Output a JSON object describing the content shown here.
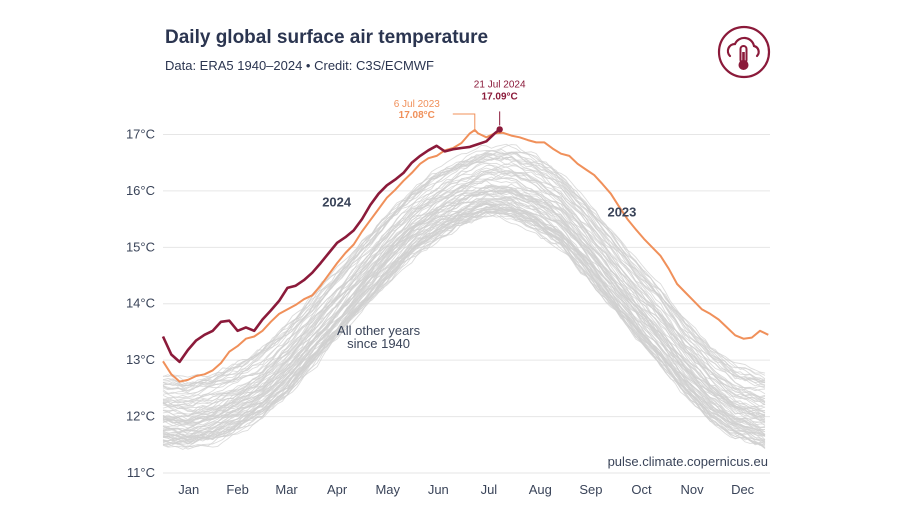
{
  "header": {
    "title": "Daily global surface air temperature",
    "subtitle": "Data: ERA5 1940–2024 • Credit: C3S/ECMWF"
  },
  "colors": {
    "y2024": "#8b1a3a",
    "y2023": "#f0905a",
    "others": "#d0d0d0",
    "text": "#2b3550",
    "logo": "#8b1a3a"
  },
  "icons": {
    "logo": "cloud-thermometer-icon"
  },
  "chart_data": {
    "type": "line",
    "title": "Daily global surface air temperature",
    "xlabel": "",
    "ylabel": "",
    "ylim": [
      11,
      17.7
    ],
    "xlim": [
      0,
      366
    ],
    "yticks": [
      11,
      12,
      13,
      14,
      15,
      16,
      17
    ],
    "ytick_labels": [
      "11°C",
      "12°C",
      "13°C",
      "14°C",
      "15°C",
      "16°C",
      "17°C"
    ],
    "month_labels": [
      "Jan",
      "Feb",
      "Mar",
      "Apr",
      "May",
      "Jun",
      "Jul",
      "Aug",
      "Sep",
      "Oct",
      "Nov",
      "Dec"
    ],
    "grid": true,
    "series": [
      {
        "name": "2024",
        "label": "2024",
        "x": [
          0,
          5,
          10,
          15,
          20,
          25,
          30,
          35,
          40,
          45,
          50,
          55,
          60,
          65,
          70,
          75,
          80,
          85,
          90,
          95,
          100,
          105,
          110,
          115,
          120,
          125,
          130,
          135,
          140,
          145,
          150,
          155,
          160,
          165,
          170,
          175,
          180,
          185,
          190,
          195,
          200,
          203
        ],
        "y": [
          13.42,
          13.1,
          12.97,
          13.18,
          13.35,
          13.45,
          13.52,
          13.68,
          13.7,
          13.52,
          13.58,
          13.52,
          13.72,
          13.88,
          14.05,
          14.28,
          14.32,
          14.42,
          14.55,
          14.72,
          14.9,
          15.08,
          15.18,
          15.3,
          15.5,
          15.75,
          15.95,
          16.1,
          16.2,
          16.32,
          16.5,
          16.62,
          16.72,
          16.8,
          16.7,
          16.74,
          16.76,
          16.78,
          16.83,
          16.88,
          17.02,
          17.09
        ]
      },
      {
        "name": "2023",
        "label": "2023",
        "x": [
          0,
          5,
          10,
          15,
          20,
          25,
          30,
          35,
          40,
          45,
          50,
          55,
          60,
          65,
          70,
          75,
          80,
          85,
          90,
          95,
          100,
          105,
          110,
          115,
          120,
          125,
          130,
          135,
          140,
          145,
          150,
          155,
          160,
          165,
          170,
          175,
          180,
          185,
          188,
          190,
          195,
          200,
          205,
          210,
          215,
          220,
          225,
          230,
          235,
          240,
          245,
          250,
          255,
          260,
          265,
          270,
          275,
          280,
          285,
          290,
          295,
          300,
          305,
          310,
          315,
          320,
          325,
          330,
          335,
          340,
          345,
          350,
          355,
          360,
          365
        ],
        "y": [
          12.98,
          12.75,
          12.62,
          12.65,
          12.72,
          12.75,
          12.82,
          12.95,
          13.15,
          13.25,
          13.38,
          13.42,
          13.52,
          13.68,
          13.82,
          13.9,
          13.98,
          14.08,
          14.15,
          14.32,
          14.52,
          14.72,
          14.9,
          15.05,
          15.28,
          15.48,
          15.68,
          15.88,
          16.02,
          16.18,
          16.32,
          16.48,
          16.58,
          16.62,
          16.72,
          16.76,
          16.85,
          17.02,
          17.08,
          17.02,
          16.95,
          17.02,
          17.03,
          16.98,
          16.95,
          16.9,
          16.86,
          16.86,
          16.75,
          16.66,
          16.62,
          16.48,
          16.38,
          16.28,
          16.12,
          15.95,
          15.72,
          15.5,
          15.32,
          15.15,
          15.0,
          14.85,
          14.62,
          14.35,
          14.2,
          14.05,
          13.9,
          13.82,
          13.72,
          13.58,
          13.44,
          13.38,
          13.4,
          13.52,
          13.45
        ]
      },
      {
        "name": "All other years since 1940",
        "label_lines": [
          "All other years",
          "since 1940"
        ],
        "x": [
          0,
          15,
          30,
          45,
          60,
          75,
          90,
          105,
          120,
          135,
          150,
          165,
          180,
          195,
          210,
          225,
          240,
          255,
          270,
          285,
          300,
          315,
          330,
          345,
          365
        ],
        "y_low": [
          11.5,
          11.45,
          11.55,
          11.75,
          12.0,
          12.4,
          12.9,
          13.4,
          13.9,
          14.4,
          14.85,
          15.15,
          15.4,
          15.55,
          15.5,
          15.3,
          15.0,
          14.5,
          13.95,
          13.4,
          12.9,
          12.4,
          11.95,
          11.65,
          11.45
        ],
        "y_high": [
          12.7,
          12.65,
          12.75,
          12.95,
          13.2,
          13.6,
          14.1,
          14.6,
          15.1,
          15.6,
          16.0,
          16.35,
          16.6,
          16.75,
          16.75,
          16.6,
          16.3,
          15.85,
          15.3,
          14.8,
          14.3,
          13.7,
          13.25,
          12.9,
          12.75
        ]
      }
    ],
    "annotations": [
      {
        "series": "2023",
        "line1": "6 Jul 2023",
        "line2": "17.08°C",
        "x": 188,
        "y": 17.08
      },
      {
        "series": "2024",
        "line1": "21 Jul 2024",
        "line2": "17.09°C",
        "x": 203,
        "y": 17.09
      }
    ],
    "source_note": "pulse.climate.copernicus.eu"
  }
}
